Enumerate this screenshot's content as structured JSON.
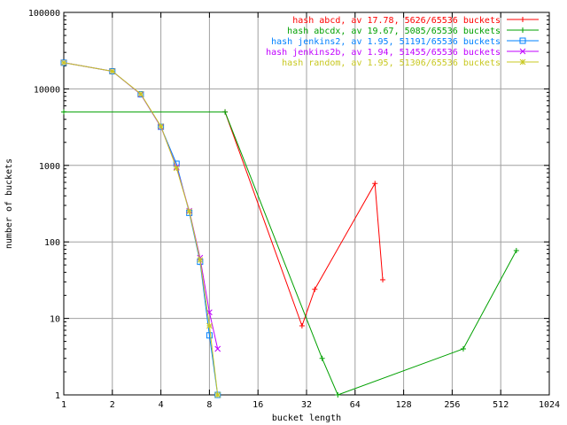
{
  "chart_data": {
    "type": "line",
    "title": "",
    "xlabel": "bucket length",
    "ylabel": "number of buckets",
    "x_scale": "log2",
    "y_scale": "log10",
    "xlim": [
      1,
      1024
    ],
    "ylim": [
      1,
      100000
    ],
    "grid": true,
    "legend_position": "top-right",
    "x_ticks": [
      1,
      2,
      4,
      8,
      16,
      32,
      64,
      128,
      256,
      512,
      1024
    ],
    "y_ticks": [
      1,
      10,
      100,
      1000,
      10000,
      100000
    ],
    "series": [
      {
        "name": "hash abcd, av 17.78, 5626/65536 buckets",
        "color": "#ff0000",
        "marker": "plus",
        "points": [
          [
            10,
            5000
          ],
          [
            30,
            8
          ],
          [
            36,
            24
          ],
          [
            85,
            580
          ],
          [
            95,
            32
          ]
        ]
      },
      {
        "name": "hash abcdx, av 19.67, 5085/65536 buckets",
        "color": "#00a000",
        "marker": "plus",
        "points": [
          [
            1,
            5000
          ],
          [
            10,
            5000
          ],
          [
            40,
            3
          ],
          [
            50,
            1
          ],
          [
            300,
            4
          ],
          [
            640,
            77
          ]
        ]
      },
      {
        "name": "hash jenkins2, av 1.95, 51191/65536 buckets",
        "color": "#0080ff",
        "marker": "square",
        "points": [
          [
            1,
            22000
          ],
          [
            2,
            17000
          ],
          [
            3,
            8500
          ],
          [
            4,
            3200
          ],
          [
            5,
            1050
          ],
          [
            6,
            240
          ],
          [
            7,
            55
          ],
          [
            8,
            6
          ],
          [
            9,
            1
          ]
        ]
      },
      {
        "name": "hash jenkins2b, av 1.94, 51455/65536 buckets",
        "color": "#c000ff",
        "marker": "x",
        "points": [
          [
            1,
            22000
          ],
          [
            2,
            17000
          ],
          [
            3,
            8500
          ],
          [
            4,
            3200
          ],
          [
            5,
            950
          ],
          [
            6,
            255
          ],
          [
            7,
            62
          ],
          [
            8,
            12
          ],
          [
            9,
            4
          ]
        ]
      },
      {
        "name": "hash random, av 1.95, 51306/65536 buckets",
        "color": "#c8c820",
        "marker": "star",
        "points": [
          [
            1,
            22000
          ],
          [
            2,
            17000
          ],
          [
            3,
            8600
          ],
          [
            4,
            3250
          ],
          [
            5,
            920
          ],
          [
            6,
            250
          ],
          [
            7,
            58
          ],
          [
            8,
            8
          ],
          [
            9,
            1
          ]
        ]
      }
    ]
  }
}
